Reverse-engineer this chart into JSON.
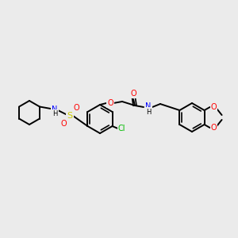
{
  "background_color": "#ebebeb",
  "bond_color": "#000000",
  "atom_colors": {
    "O": "#ff0000",
    "N": "#0000ff",
    "S": "#cccc00",
    "Cl": "#00bb00",
    "C": "#000000",
    "H": "#000000"
  },
  "figsize": [
    3.0,
    3.0
  ],
  "dpi": 100
}
